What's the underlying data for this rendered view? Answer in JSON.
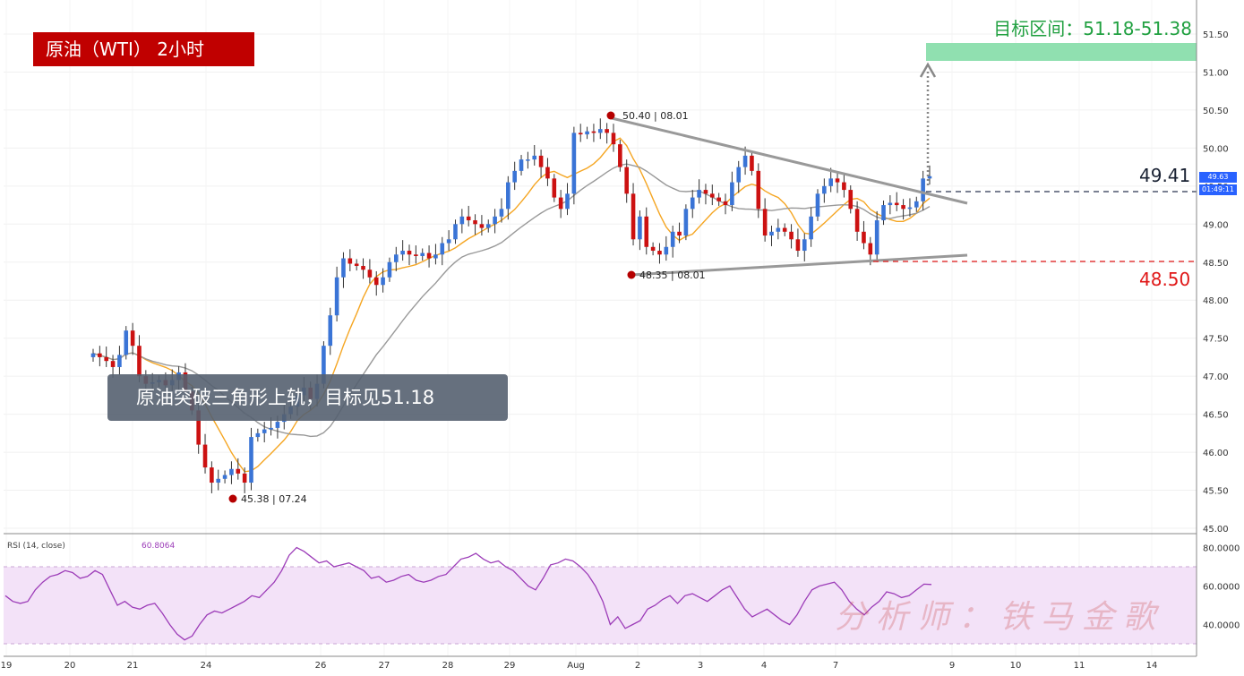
{
  "title": "原油（WTI） 2小时",
  "caption": "原油突破三角形上轨，目标见51.18",
  "target_label": "目标区间：51.18-51.38",
  "level_upper": "49.41",
  "level_lower": "48.50",
  "watermark": "分析师：铁马金歌",
  "current_price": "49.63",
  "countdown": "01:49:11",
  "rsi_label": "RSI (14, close)",
  "rsi_value": "60.8064",
  "annotations": {
    "high": "50.40 | 08.01",
    "low_aug": "48.35 | 08.01",
    "low_jul": "45.38 | 07.24"
  },
  "colors": {
    "up": "#3a74d6",
    "down": "#cc1111",
    "ma_fast": "#f5a623",
    "ma_slow": "#999999",
    "target_zone": "#90e0b0",
    "rsi_line": "#9c3cb8",
    "rsi_band": "#f3e2f8"
  },
  "chart_data": [
    {
      "type": "candlestick",
      "title": "原油（WTI） 2小时",
      "x_ticks": [
        "19",
        "20",
        "21",
        "24",
        "26",
        "27",
        "28",
        "29",
        "Aug",
        "2",
        "3",
        "4",
        "7",
        "9",
        "10",
        "11",
        "14"
      ],
      "y_ticks": [
        "45.00",
        "45.50",
        "46.00",
        "46.50",
        "47.00",
        "47.50",
        "48.00",
        "48.50",
        "49.00",
        "49.50",
        "50.00",
        "50.50",
        "51.00",
        "51.50"
      ],
      "ylim": [
        45.0,
        51.7
      ],
      "close": [
        47.3,
        47.25,
        47.2,
        47.12,
        47.28,
        47.6,
        47.4,
        47.0,
        46.9,
        46.92,
        46.95,
        46.88,
        46.95,
        47.05,
        46.8,
        46.55,
        46.1,
        45.8,
        45.6,
        45.65,
        45.7,
        45.78,
        45.72,
        45.6,
        46.2,
        46.25,
        46.3,
        46.32,
        46.4,
        46.5,
        46.6,
        46.75,
        46.85,
        46.7,
        46.9,
        47.4,
        47.8,
        48.3,
        48.55,
        48.48,
        48.45,
        48.4,
        48.3,
        48.2,
        48.3,
        48.5,
        48.6,
        48.65,
        48.6,
        48.58,
        48.62,
        48.55,
        48.6,
        48.75,
        48.8,
        49.0,
        49.1,
        49.05,
        49.0,
        48.95,
        49.0,
        49.1,
        49.2,
        49.55,
        49.7,
        49.85,
        49.85,
        49.9,
        49.75,
        49.6,
        49.35,
        49.2,
        49.4,
        50.2,
        50.18,
        50.22,
        50.2,
        50.25,
        50.2,
        50.05,
        49.75,
        49.4,
        48.8,
        49.1,
        48.7,
        48.65,
        48.6,
        48.7,
        48.9,
        48.85,
        49.2,
        49.35,
        49.45,
        49.4,
        49.35,
        49.3,
        49.25,
        49.55,
        49.75,
        49.9,
        49.7,
        49.2,
        48.85,
        48.9,
        48.95,
        48.9,
        48.8,
        48.65,
        48.8,
        49.1,
        49.4,
        49.5,
        49.6,
        49.55,
        49.45,
        49.2,
        48.9,
        48.75,
        48.6,
        49.05,
        49.25,
        49.28,
        49.25,
        49.2,
        49.22,
        49.3,
        49.6,
        49.63
      ],
      "annotations": [
        "50.40 | 08.01",
        "48.35 | 08.01",
        "45.38 | 07.24"
      ],
      "levels": [
        49.41,
        48.5
      ],
      "target_zone": [
        51.18,
        51.38
      ]
    },
    {
      "type": "line",
      "title": "RSI (14, close)",
      "y_ticks": [
        "40.0000",
        "60.0000",
        "80.0000"
      ],
      "ylim": [
        35,
        85
      ],
      "band": [
        30,
        70
      ],
      "last_value": 60.8064,
      "values": [
        55,
        52,
        51,
        52,
        58,
        62,
        65,
        66,
        68,
        67,
        64,
        65,
        68,
        66,
        58,
        50,
        52,
        49,
        48,
        50,
        51,
        46,
        40,
        35,
        32,
        34,
        40,
        45,
        47,
        46,
        48,
        50,
        52,
        55,
        54,
        58,
        62,
        68,
        76,
        80,
        78,
        75,
        72,
        73,
        70,
        71,
        72,
        70,
        68,
        64,
        65,
        62,
        63,
        65,
        66,
        63,
        62,
        63,
        65,
        66,
        70,
        74,
        75,
        77,
        74,
        72,
        73,
        70,
        68,
        64,
        60,
        58,
        64,
        71,
        72,
        74,
        73,
        70,
        66,
        60,
        52,
        40,
        44,
        38,
        40,
        42,
        48,
        50,
        53,
        55,
        51,
        55,
        56,
        54,
        52,
        55,
        58,
        60,
        54,
        48,
        44,
        46,
        48,
        45,
        42,
        40,
        45,
        52,
        58,
        60,
        61,
        62,
        58,
        52,
        48,
        45,
        49,
        52,
        57,
        56,
        54,
        55,
        58,
        61,
        60.8
      ]
    }
  ]
}
